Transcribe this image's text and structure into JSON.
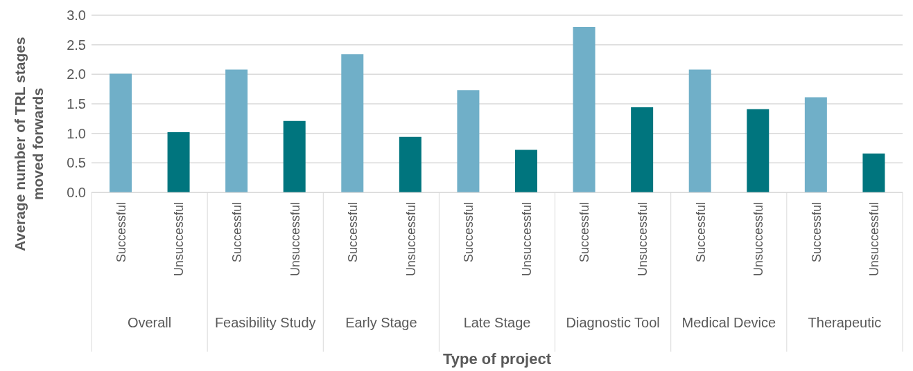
{
  "chart_data": {
    "type": "bar",
    "xlabel": "Type of project",
    "ylabel": "Average number of TRL stages moved forwards",
    "categories": [
      "Successful",
      "Unsuccessful",
      "Successful",
      "Unsuccessful",
      "Successful",
      "Unsuccessful",
      "Successful",
      "Unsuccessful",
      "Successful",
      "Unsuccessful",
      "Successful",
      "Unsuccessful",
      "Successful",
      "Unsuccessful"
    ],
    "values": [
      2.01,
      1.02,
      2.08,
      1.21,
      2.34,
      0.94,
      1.73,
      0.72,
      2.8,
      1.44,
      2.08,
      1.41,
      1.61,
      0.66
    ],
    "colors": [
      "#70afc8",
      "#00757e",
      "#70afc8",
      "#00757e",
      "#70afc8",
      "#00757e",
      "#70afc8",
      "#00757e",
      "#70afc8",
      "#00757e",
      "#70afc8",
      "#00757e",
      "#70afc8",
      "#00757e"
    ],
    "annotations": [
      "Overall",
      "Feasibility Study",
      "Early Stage",
      "Late Stage",
      "Diagnostic Tool",
      "Medical Device",
      "Therapeutic"
    ],
    "ylim": [
      0,
      3
    ],
    "yticks": [
      {
        "value": 0,
        "label": "0.0"
      },
      0.5,
      {
        "value": 1,
        "label": "1.0"
      },
      1.5,
      {
        "value": 2,
        "label": "2.0"
      },
      2.5,
      {
        "value": 3,
        "label": "3.0"
      }
    ],
    "grid": "y"
  }
}
